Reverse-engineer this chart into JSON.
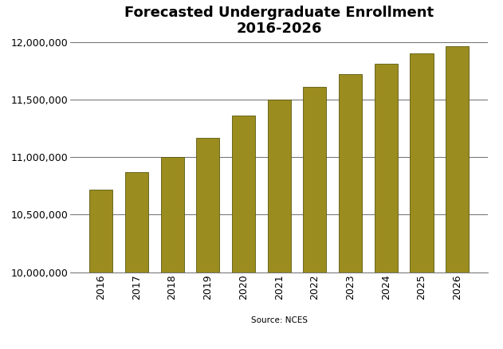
{
  "title": "Forecasted Undergraduate Enrollment\n2016-2026",
  "years": [
    "2016",
    "2017",
    "2018",
    "2019",
    "2020",
    "2021",
    "2022",
    "2023",
    "2024",
    "2025",
    "2026"
  ],
  "values": [
    10720000,
    10870000,
    11000000,
    11170000,
    11360000,
    11500000,
    11610000,
    11720000,
    11810000,
    11900000,
    11960000
  ],
  "bar_color": "#9a8c1e",
  "bar_edgecolor": "#5a5a10",
  "ylim": [
    10000000,
    12000000
  ],
  "yticks": [
    10000000,
    10500000,
    11000000,
    11500000,
    12000000
  ],
  "source_text": "Source: NCES",
  "background_color": "#ffffff",
  "title_fontsize": 13,
  "tick_fontsize": 9,
  "source_fontsize": 7.5,
  "bar_width": 0.65
}
